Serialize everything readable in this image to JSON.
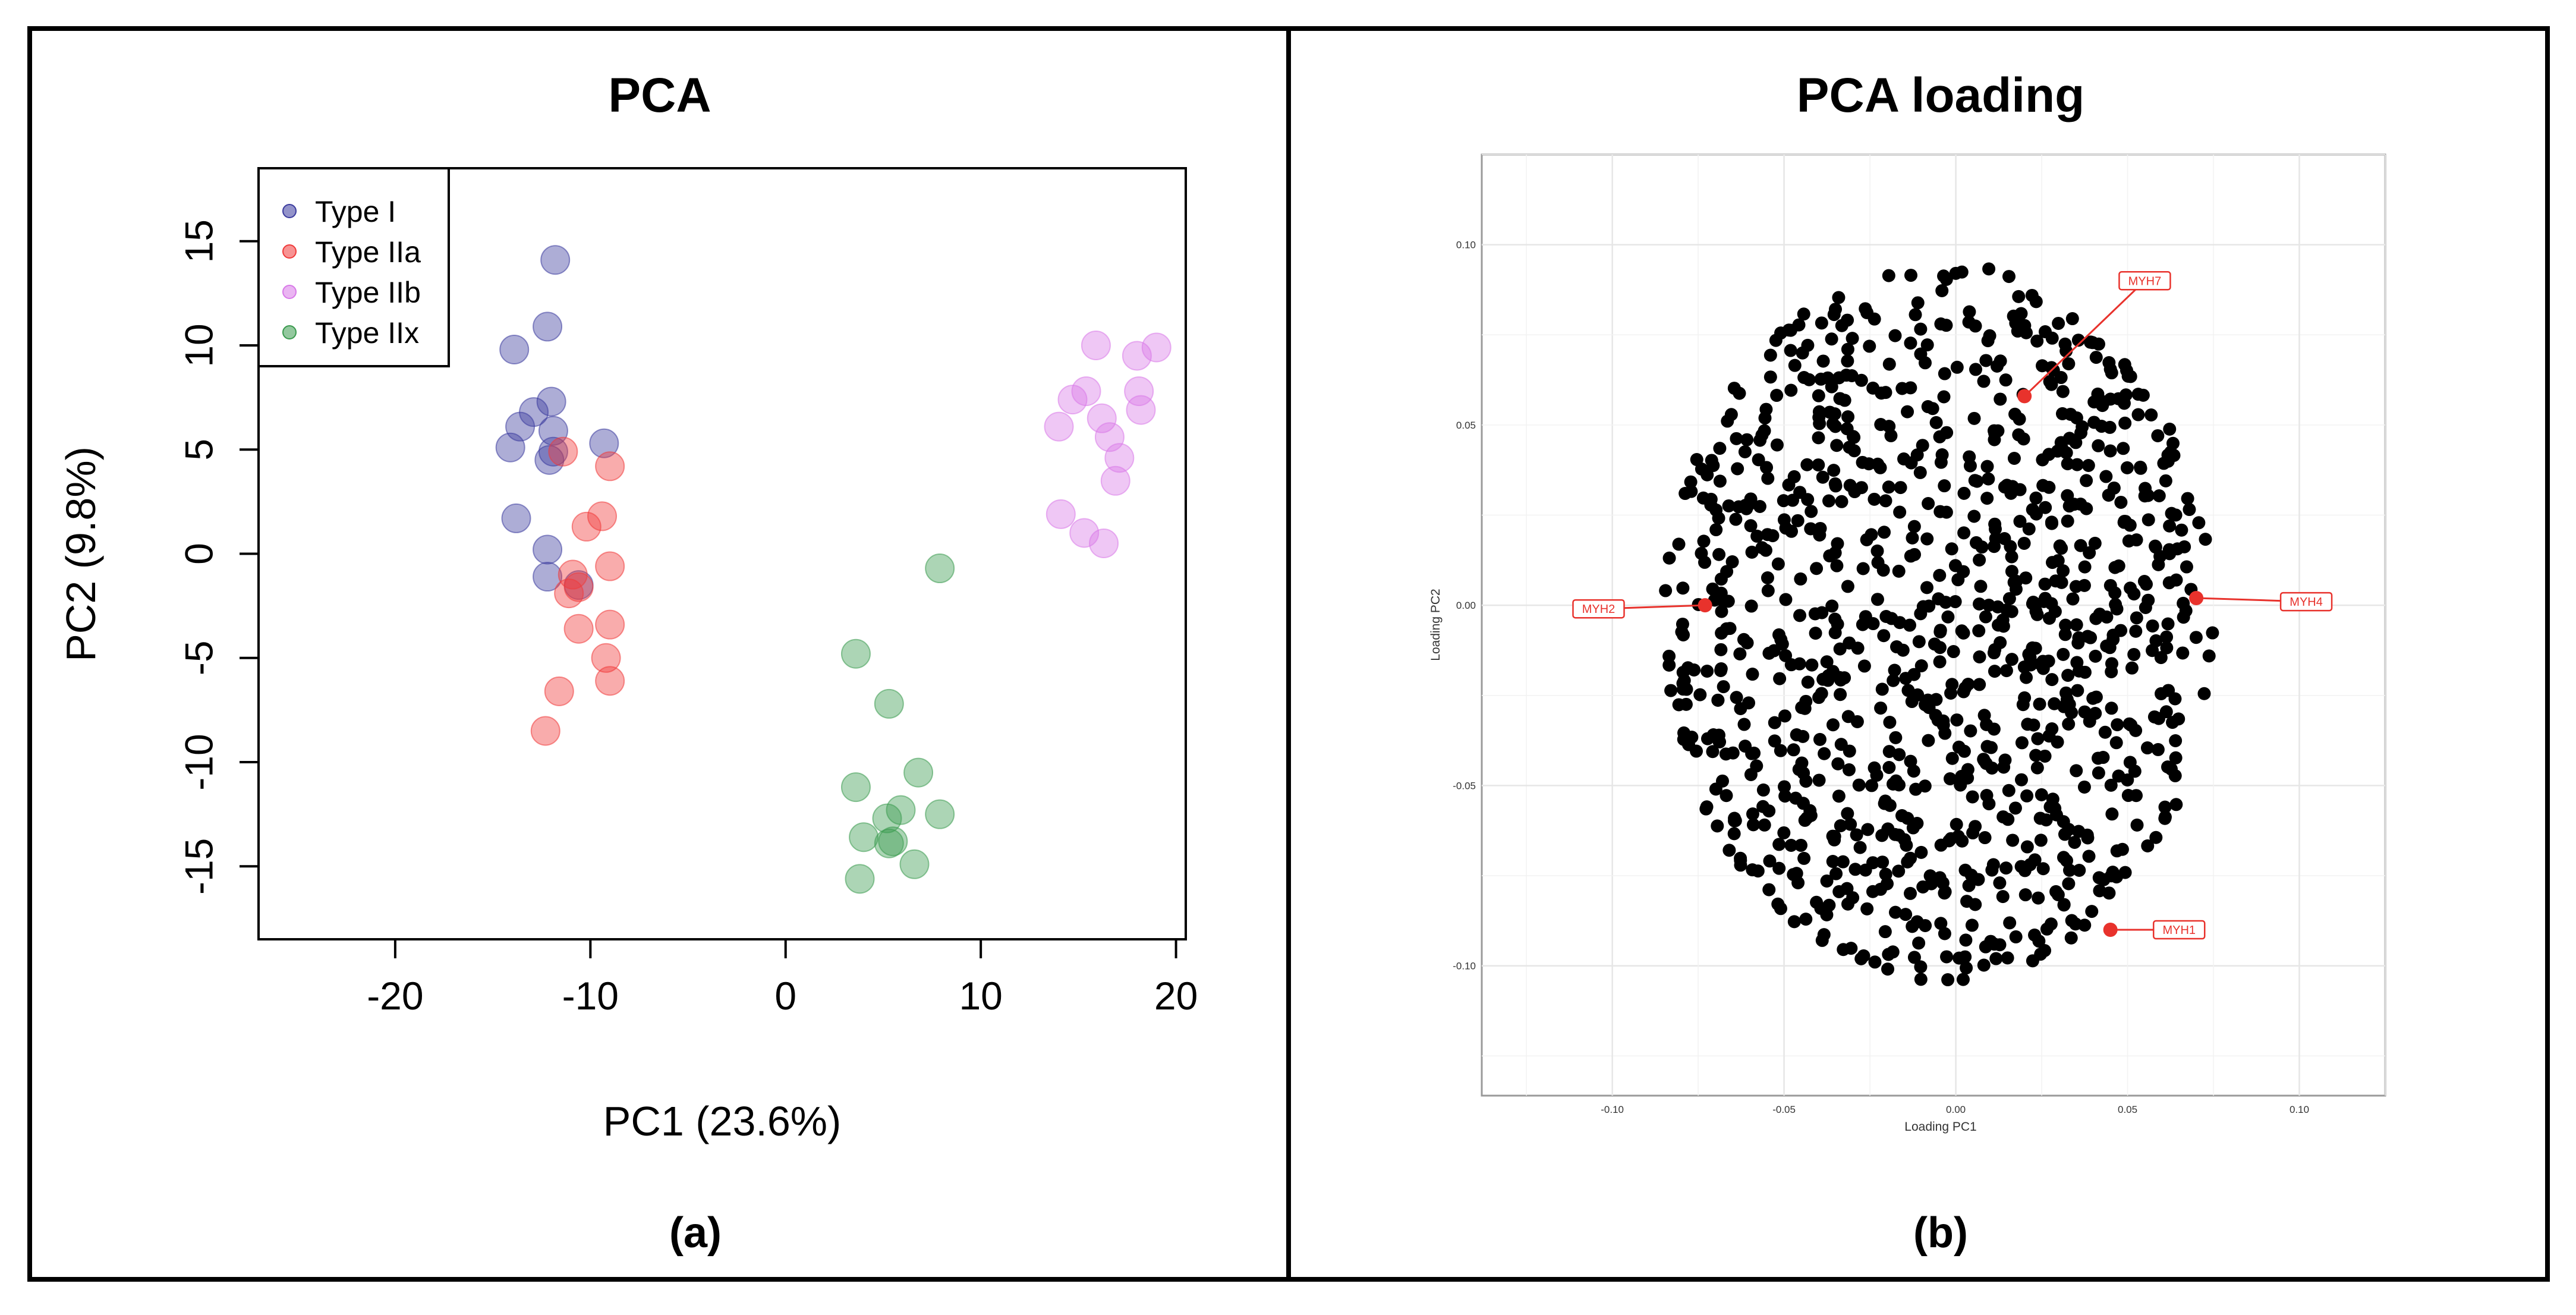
{
  "panels": [
    {
      "title": "PCA",
      "caption": "(a)"
    },
    {
      "title": "PCA loading",
      "caption": "(b)"
    }
  ],
  "chart_data": [
    {
      "type": "scatter",
      "title": "PCA",
      "xlabel": "PC1 (23.6%)",
      "ylabel": "PC2 (9.8%)",
      "xlim": [
        -27,
        20.5
      ],
      "ylim": [
        -18.5,
        18.5
      ],
      "xticks": [
        -20,
        -10,
        0,
        10,
        20
      ],
      "yticks": [
        -15,
        -10,
        -5,
        0,
        5,
        10,
        15
      ],
      "legend_position": "top-left",
      "series": [
        {
          "name": "Type I",
          "color": "#3b3b9e",
          "points": [
            [
              -11.8,
              14.1
            ],
            [
              -12.2,
              10.9
            ],
            [
              -13.9,
              9.8
            ],
            [
              -12.9,
              6.8
            ],
            [
              -12.0,
              7.3
            ],
            [
              -13.6,
              6.1
            ],
            [
              -11.9,
              5.9
            ],
            [
              -14.1,
              5.1
            ],
            [
              -9.3,
              5.3
            ],
            [
              -12.1,
              4.5
            ],
            [
              -11.9,
              4.9
            ],
            [
              -13.8,
              1.7
            ],
            [
              -12.2,
              0.2
            ],
            [
              -12.2,
              -1.1
            ],
            [
              -10.6,
              -1.5
            ]
          ]
        },
        {
          "name": "Type IIa",
          "color": "#f03a3a",
          "points": [
            [
              -11.4,
              4.9
            ],
            [
              -9.0,
              4.2
            ],
            [
              -9.4,
              1.8
            ],
            [
              -10.2,
              1.3
            ],
            [
              -10.9,
              -1.0
            ],
            [
              -10.6,
              -1.6
            ],
            [
              -9.0,
              -0.6
            ],
            [
              -11.1,
              -1.9
            ],
            [
              -10.6,
              -3.6
            ],
            [
              -9.0,
              -3.4
            ],
            [
              -9.2,
              -5.0
            ],
            [
              -9.0,
              -6.1
            ],
            [
              -11.6,
              -6.6
            ],
            [
              -12.3,
              -8.5
            ]
          ]
        },
        {
          "name": "Type IIb",
          "color": "#d879e8",
          "points": [
            [
              15.9,
              10.0
            ],
            [
              19.0,
              9.9
            ],
            [
              18.0,
              9.5
            ],
            [
              18.1,
              7.8
            ],
            [
              15.4,
              7.8
            ],
            [
              14.7,
              7.4
            ],
            [
              18.2,
              6.9
            ],
            [
              16.2,
              6.5
            ],
            [
              14.0,
              6.1
            ],
            [
              16.6,
              5.6
            ],
            [
              17.1,
              4.6
            ],
            [
              16.9,
              3.5
            ],
            [
              14.1,
              1.9
            ],
            [
              15.3,
              1.0
            ],
            [
              16.3,
              0.5
            ]
          ]
        },
        {
          "name": "Type IIx",
          "color": "#3a9a4e",
          "points": [
            [
              7.9,
              -0.7
            ],
            [
              3.6,
              -4.8
            ],
            [
              5.3,
              -7.2
            ],
            [
              6.8,
              -10.5
            ],
            [
              3.6,
              -11.2
            ],
            [
              7.9,
              -12.5
            ],
            [
              5.9,
              -12.3
            ],
            [
              5.2,
              -12.7
            ],
            [
              4.0,
              -13.6
            ],
            [
              5.3,
              -13.9
            ],
            [
              5.5,
              -13.8
            ],
            [
              6.6,
              -14.9
            ],
            [
              3.8,
              -15.6
            ]
          ]
        }
      ]
    },
    {
      "type": "scatter",
      "title": "PCA loading",
      "xlabel": "Loading PC1",
      "ylabel": "Loading PC2",
      "xlim": [
        -0.138,
        0.125
      ],
      "ylim": [
        -0.136,
        0.125
      ],
      "xticks": [
        -0.1,
        -0.05,
        0.0,
        0.05,
        0.1
      ],
      "xtick_labels": [
        "-0.10",
        "-0.05",
        "0.00",
        "0.05",
        "0.10"
      ],
      "yticks": [
        -0.1,
        -0.05,
        0.0,
        0.05,
        0.1
      ],
      "yticklabels": [
        "-0.10",
        "-0.05",
        "0.00",
        "0.05",
        "0.10"
      ],
      "grid": true,
      "n_points": 1030,
      "point_cloud": {
        "center": [
          -0.005,
          -0.005
        ],
        "radius_x": 0.08,
        "radius_y": 0.1,
        "seed": 7
      },
      "highlighted": [
        {
          "label": "MYH7",
          "x": 0.02,
          "y": 0.058,
          "label_x": 0.055,
          "label_y": 0.09
        },
        {
          "label": "MYH2",
          "x": -0.073,
          "y": 0.0,
          "label_x": -0.104,
          "label_y": -0.001
        },
        {
          "label": "MYH4",
          "x": 0.07,
          "y": 0.002,
          "label_x": 0.102,
          "label_y": 0.001
        },
        {
          "label": "MYH1",
          "x": 0.045,
          "y": -0.09,
          "label_x": 0.065,
          "label_y": -0.09
        }
      ]
    }
  ]
}
